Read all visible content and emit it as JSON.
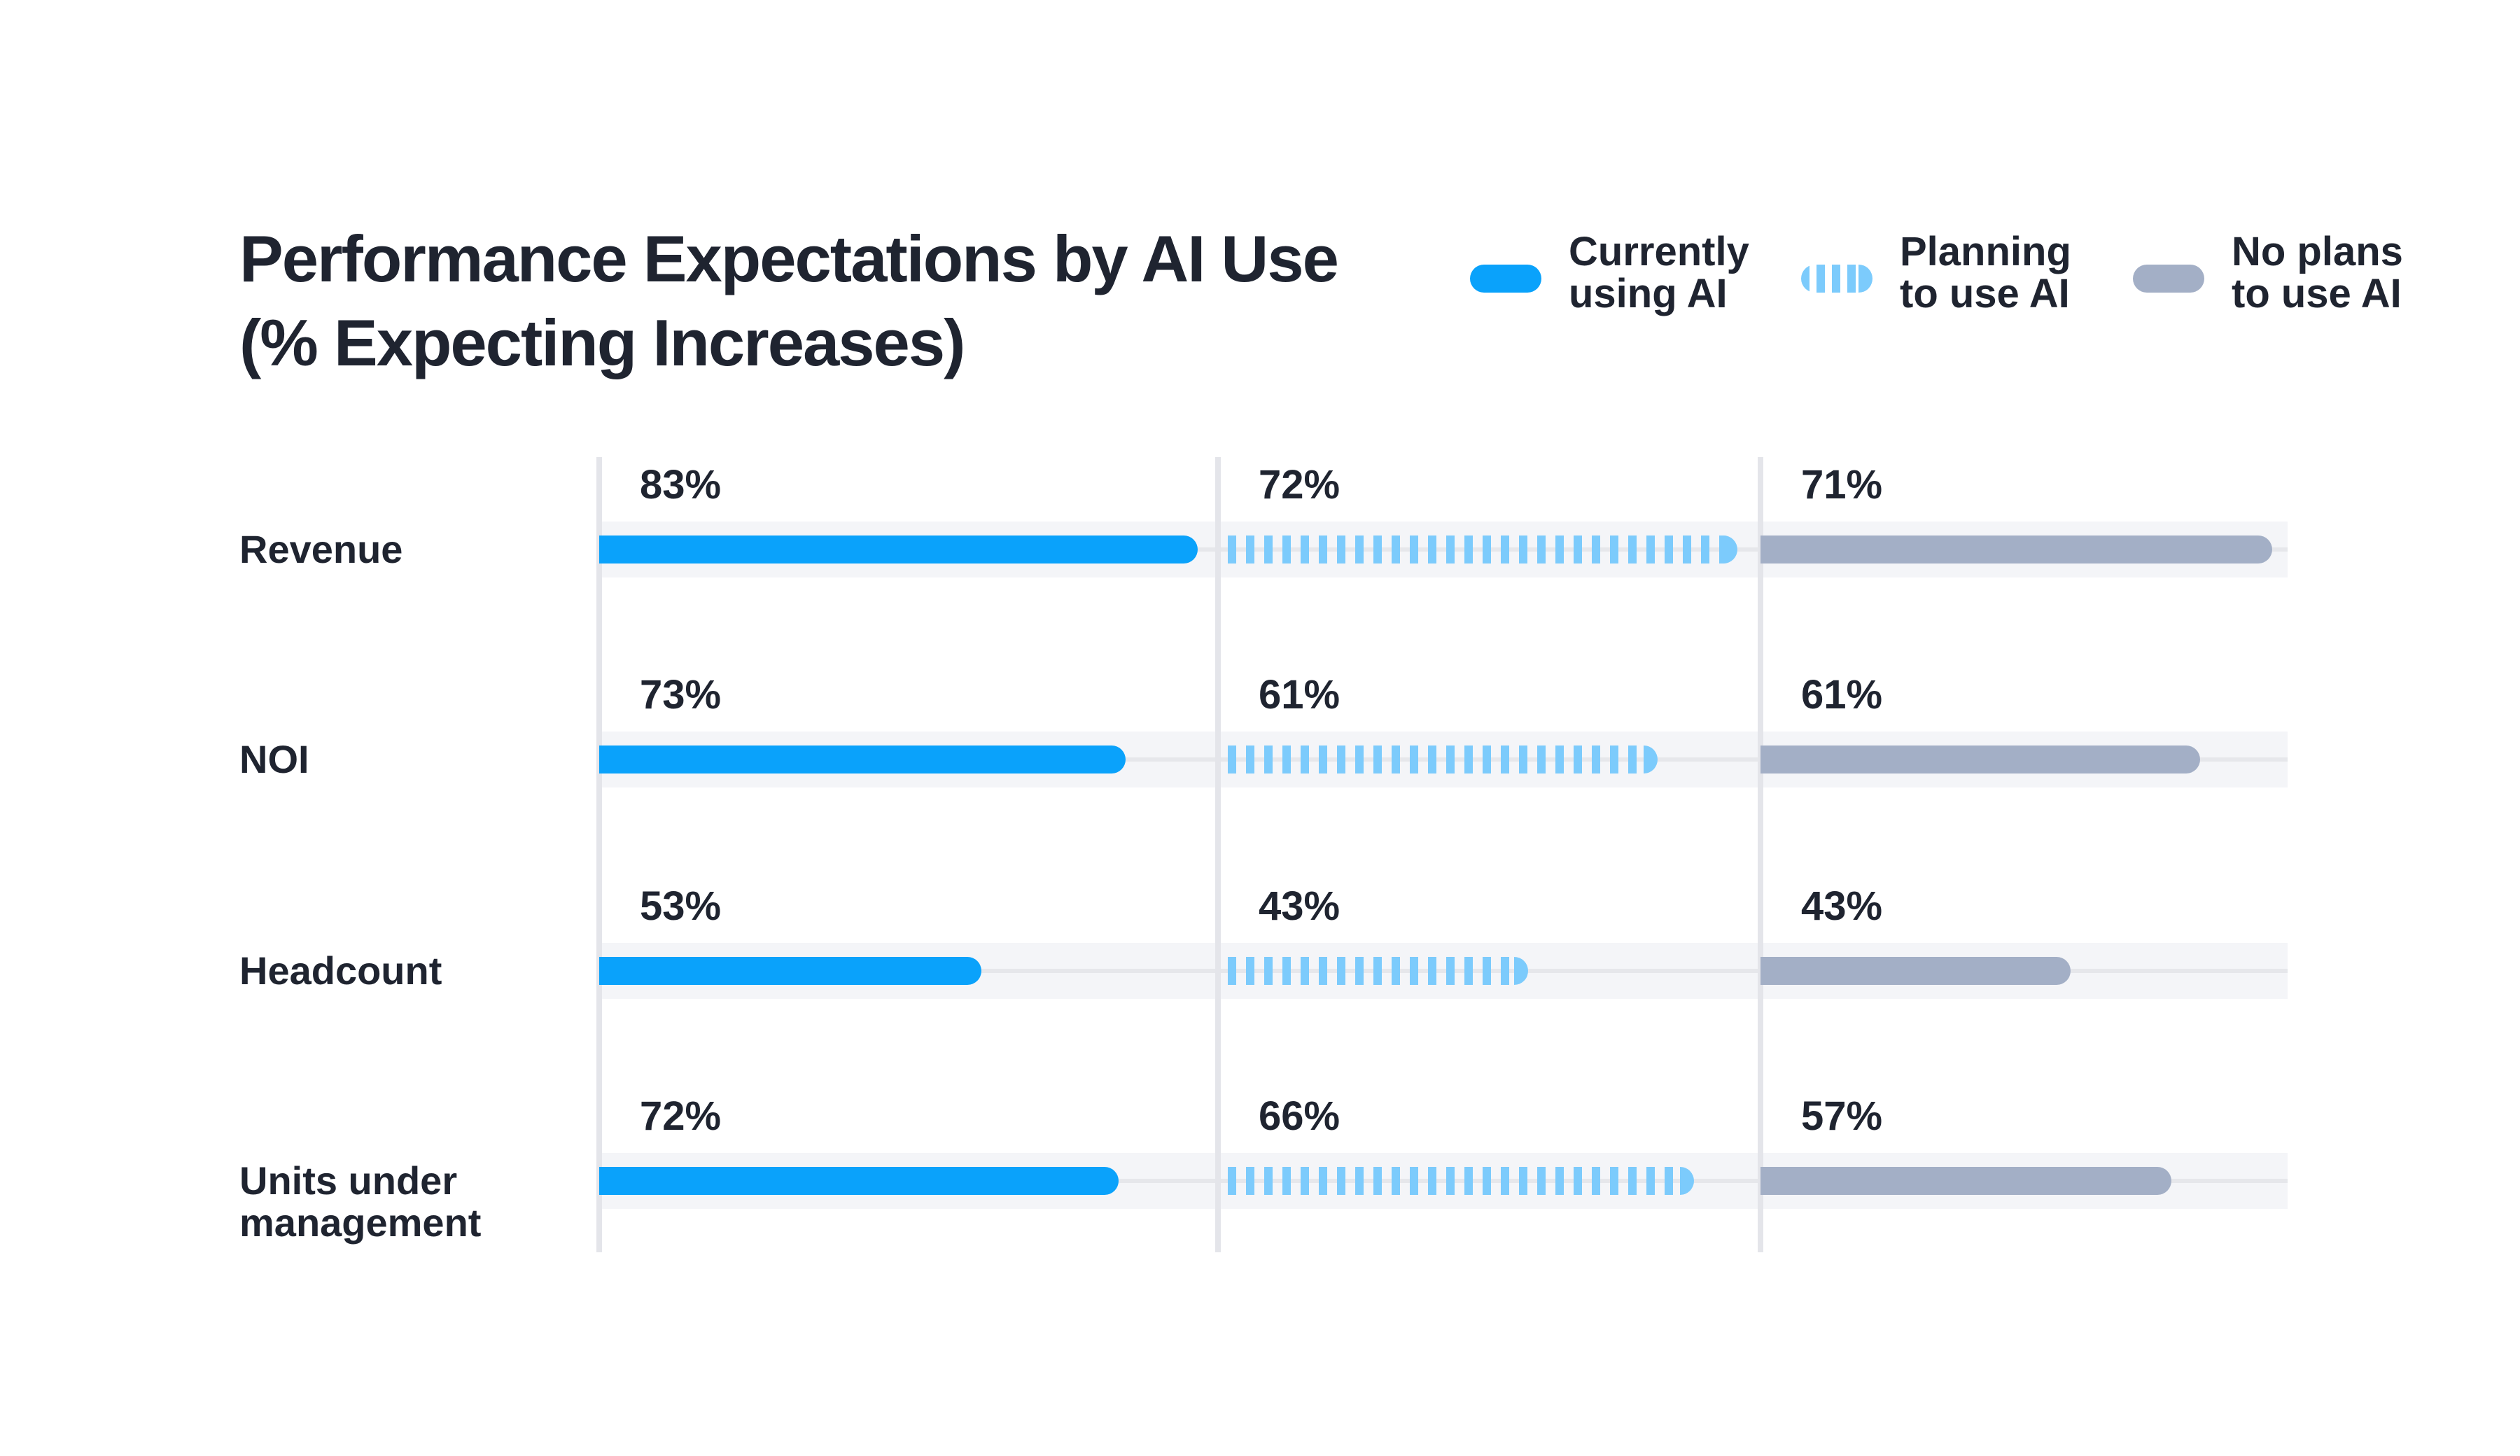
{
  "chart_data": {
    "type": "bar",
    "title": [
      "Performance Expectations by AI Use",
      "(% Expecting Increases)"
    ],
    "categories": [
      "Revenue",
      "NOI",
      "Headcount",
      "Units under management"
    ],
    "category_lines": [
      [
        "Revenue"
      ],
      [
        "NOI"
      ],
      [
        "Headcount"
      ],
      [
        "Units under",
        "management"
      ]
    ],
    "series": [
      {
        "name": "Currently using AI",
        "legend_lines": [
          "Currently",
          "using AI"
        ],
        "values": [
          83,
          73,
          53,
          72
        ],
        "labels": [
          "83%",
          "73%",
          "53%",
          "72%"
        ],
        "color": "#0aa2fb",
        "pattern": "solid"
      },
      {
        "name": "Planning to use AI",
        "legend_lines": [
          "Planning",
          "to use AI"
        ],
        "values": [
          72,
          61,
          43,
          66
        ],
        "labels": [
          "72%",
          "61%",
          "43%",
          "66%"
        ],
        "color": "#7ccbfc",
        "pattern": "striped"
      },
      {
        "name": "No plans to use AI",
        "legend_lines": [
          "No plans",
          "to use AI"
        ],
        "values": [
          71,
          61,
          43,
          57
        ],
        "labels": [
          "71%",
          "61%",
          "43%",
          "57%"
        ],
        "color": "#a3afc6",
        "pattern": "solid"
      }
    ],
    "xlim": [
      0,
      100
    ],
    "legend_position": "top-right",
    "grid": false
  }
}
